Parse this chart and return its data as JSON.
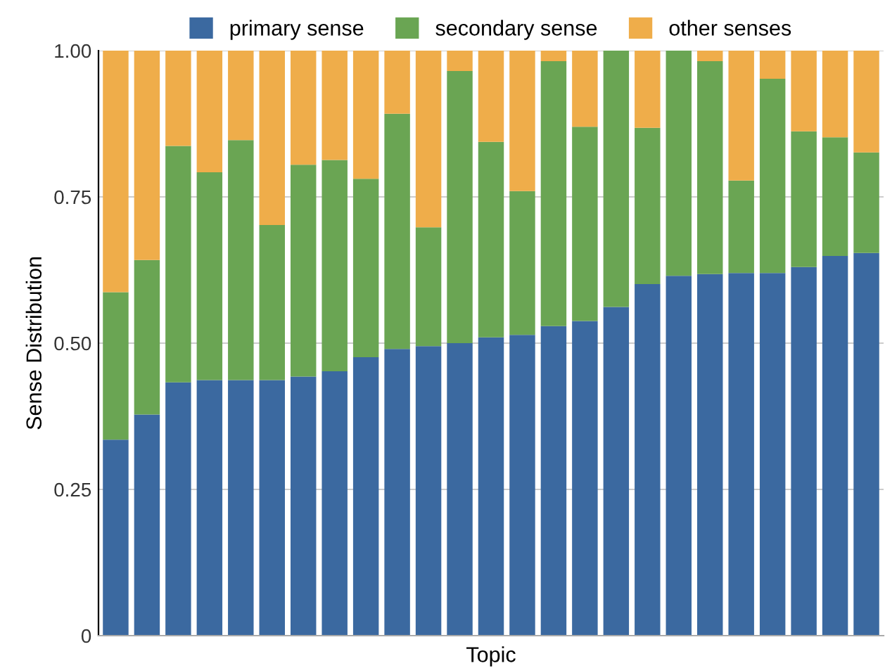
{
  "chart_data": {
    "type": "bar",
    "stacked": true,
    "xlabel": "Topic",
    "ylabel": "Sense Distribution",
    "categories": [
      null,
      null,
      null,
      null,
      null,
      null,
      null,
      null,
      null,
      null,
      null,
      null,
      null,
      null,
      null,
      null,
      null,
      null,
      null,
      null,
      null,
      null,
      null,
      null,
      null
    ],
    "series": [
      {
        "name": "primary sense",
        "color": "#3b69a0",
        "values": [
          0.335,
          0.378,
          0.433,
          0.437,
          0.437,
          0.437,
          0.443,
          0.452,
          0.476,
          0.49,
          0.495,
          0.5,
          0.51,
          0.514,
          0.529,
          0.538,
          0.562,
          0.601,
          0.615,
          0.618,
          0.62,
          0.62,
          0.63,
          0.649,
          0.654
        ]
      },
      {
        "name": "secondary sense",
        "color": "#6aa553",
        "values": [
          0.252,
          0.264,
          0.404,
          0.355,
          0.41,
          0.265,
          0.362,
          0.361,
          0.305,
          0.402,
          0.203,
          0.465,
          0.334,
          0.246,
          0.453,
          0.332,
          0.438,
          0.267,
          0.385,
          0.364,
          0.158,
          0.332,
          0.232,
          0.203,
          0.172
        ]
      },
      {
        "name": "other senses",
        "color": "#efad4a",
        "values": [
          0.413,
          0.358,
          0.163,
          0.208,
          0.153,
          0.298,
          0.195,
          0.187,
          0.219,
          0.108,
          0.302,
          0.035,
          0.156,
          0.24,
          0.018,
          0.13,
          0.0,
          0.132,
          0.0,
          0.018,
          0.222,
          0.048,
          0.138,
          0.148,
          0.174
        ]
      }
    ],
    "ylim": [
      0,
      1
    ],
    "yticks": [
      {
        "value": 0,
        "label": "0"
      },
      {
        "value": 0.25,
        "label": "0.25"
      },
      {
        "value": 0.5,
        "label": "0.50"
      },
      {
        "value": 0.75,
        "label": "0.75"
      },
      {
        "value": 1,
        "label": "1.00"
      }
    ],
    "grid": "y",
    "legend": "top"
  }
}
